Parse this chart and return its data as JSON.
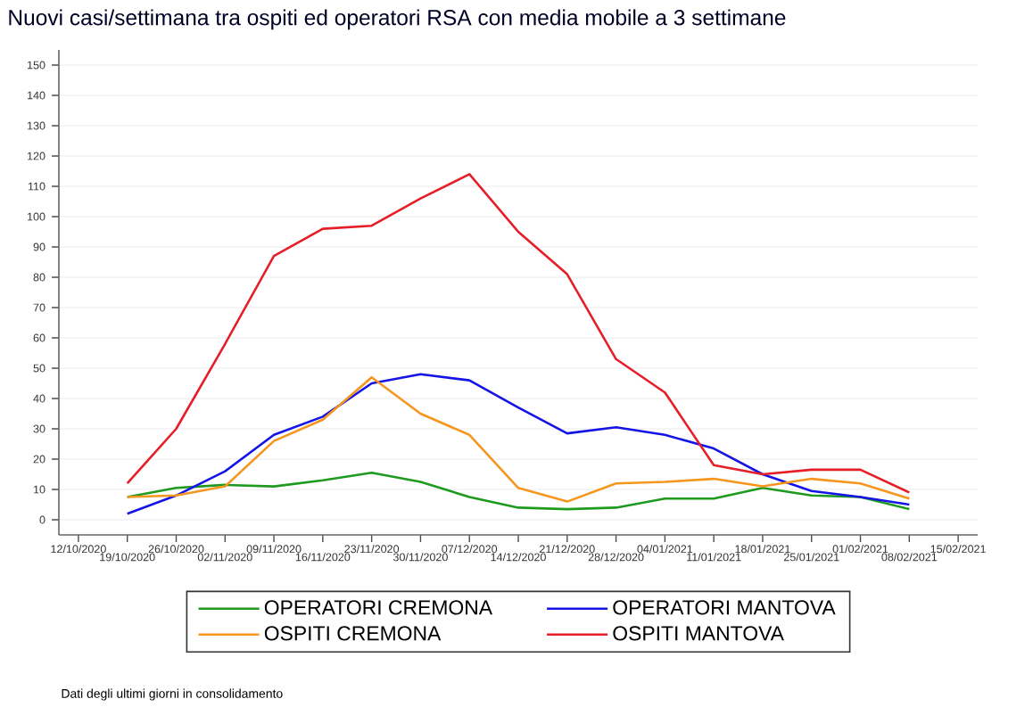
{
  "chart_data": {
    "type": "line",
    "title": "Nuovi casi/settimana tra ospiti ed operatori RSA con media mobile a 3 settimane",
    "categories": [
      "12/10/2020",
      "19/10/2020",
      "26/10/2020",
      "02/11/2020",
      "09/11/2020",
      "16/11/2020",
      "23/11/2020",
      "30/11/2020",
      "07/12/2020",
      "14/12/2020",
      "21/12/2020",
      "28/12/2020",
      "04/01/2021",
      "11/01/2021",
      "18/01/2021",
      "25/01/2021",
      "01/02/2021",
      "08/02/2021",
      "15/02/2021"
    ],
    "series": [
      {
        "name": "OPERATORI CREMONA",
        "color": "#1e9a1e",
        "values": [
          null,
          7.5,
          10.5,
          11.5,
          11,
          13,
          15.5,
          12.5,
          7.5,
          4,
          3.5,
          4,
          7,
          7,
          10.5,
          8,
          7.5,
          3.5,
          null
        ]
      },
      {
        "name": "OPERATORI MANTOVA",
        "color": "#1414e6",
        "values": [
          null,
          2,
          8,
          16,
          28,
          34,
          45,
          48,
          46,
          37,
          28.5,
          30.5,
          28,
          23.5,
          15,
          9.5,
          7.5,
          5,
          null
        ]
      },
      {
        "name": "OSPITI CREMONA",
        "color": "#f5961e",
        "values": [
          null,
          7.5,
          8,
          11,
          26,
          33,
          47,
          35,
          28,
          10.5,
          6,
          12,
          12.5,
          13.5,
          11,
          13.5,
          12,
          7,
          null
        ]
      },
      {
        "name": "OSPITI MANTOVA",
        "color": "#e61e28",
        "values": [
          null,
          12,
          30,
          58,
          87,
          96,
          97,
          106,
          114,
          95,
          81,
          53,
          42,
          18,
          15,
          16.5,
          16.5,
          9,
          null
        ]
      }
    ],
    "ylim": [
      -5,
      155
    ],
    "yticks": [
      0,
      10,
      20,
      30,
      40,
      50,
      60,
      70,
      80,
      90,
      100,
      110,
      120,
      130,
      140,
      150
    ],
    "grid": "y",
    "legend": "bottom",
    "annotations": [
      "Dati degli ultimi giorni in consolidamento"
    ]
  }
}
